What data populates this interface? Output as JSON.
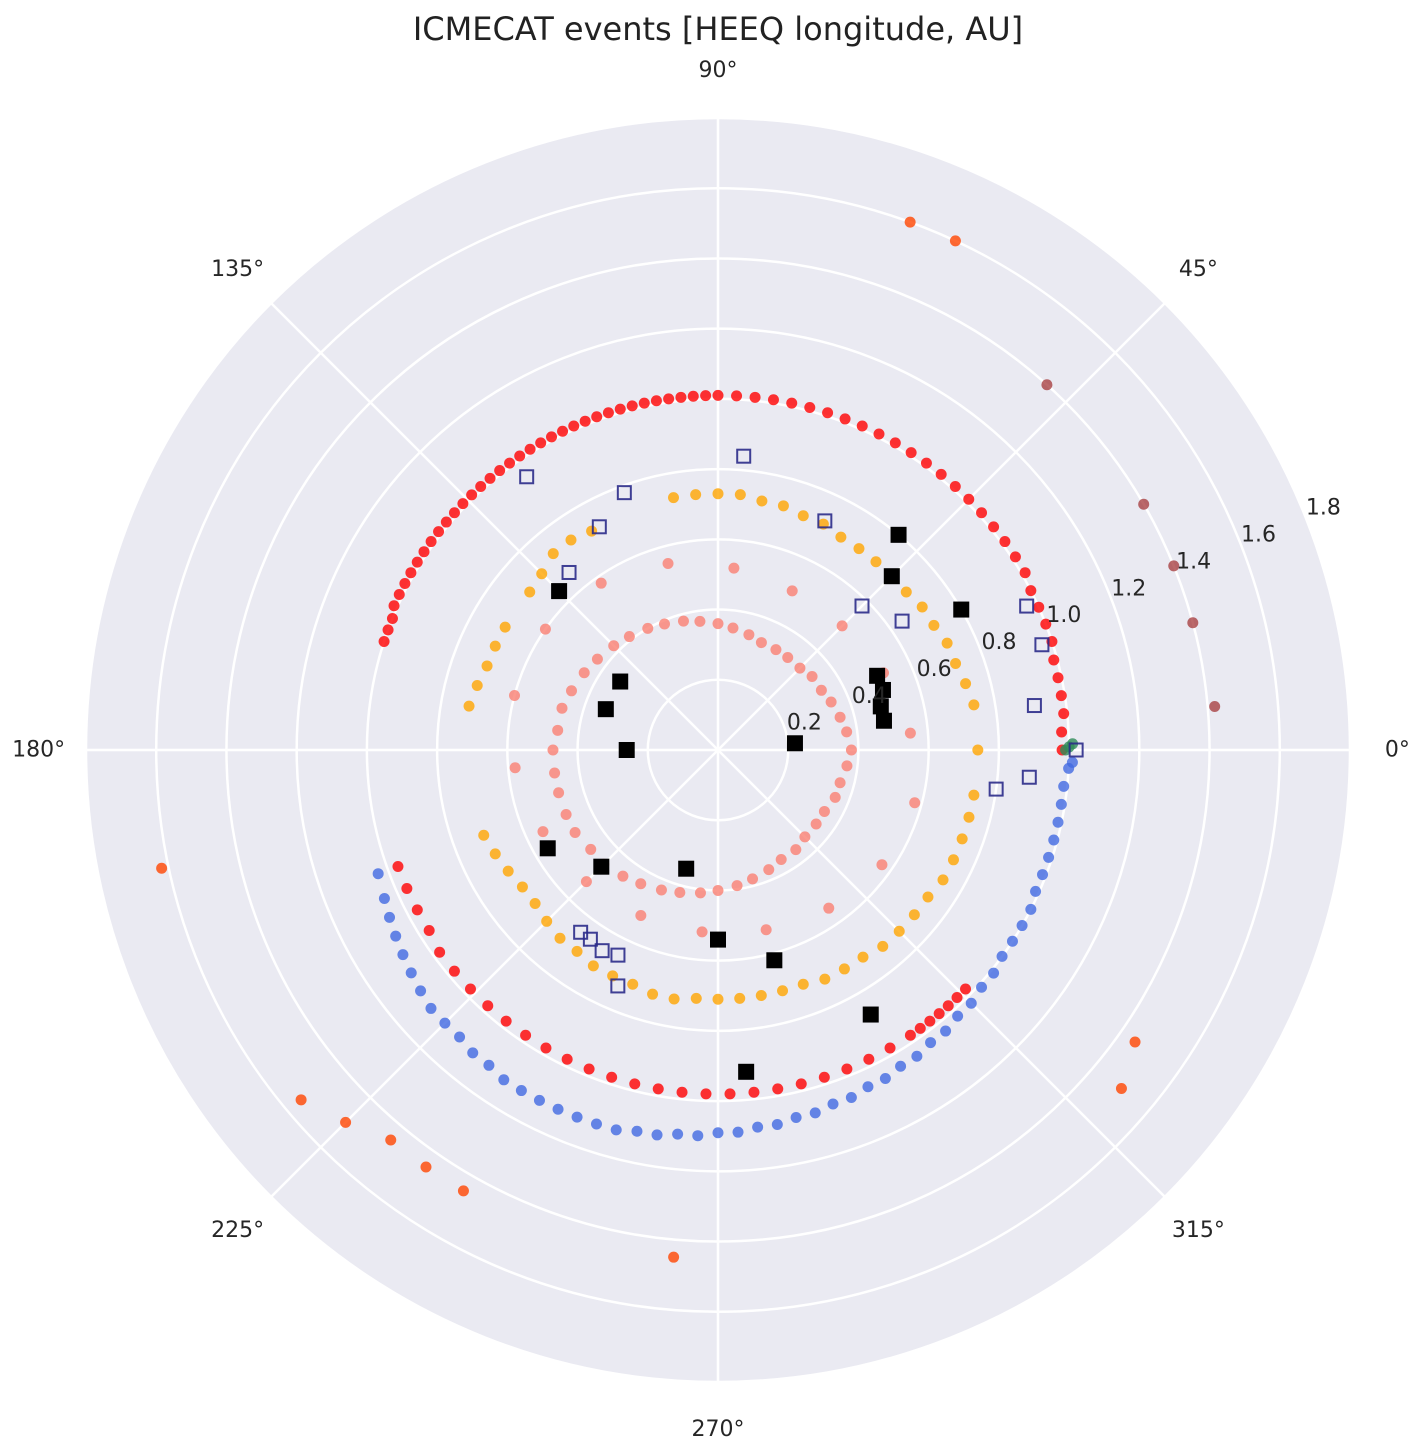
{
  "chart_data": {
    "type": "scatter",
    "projection": "polar",
    "title": "ICMECAT events [HEEQ longitude, AU]",
    "theta_unit": "degrees",
    "r_unit": "AU",
    "rlim": [
      0,
      1.8
    ],
    "grid": true,
    "angle_ticks": [
      {
        "deg": 0,
        "label": "0°"
      },
      {
        "deg": 45,
        "label": "45°"
      },
      {
        "deg": 90,
        "label": "90°"
      },
      {
        "deg": 135,
        "label": "135°"
      },
      {
        "deg": 180,
        "label": "180°"
      },
      {
        "deg": 225,
        "label": "225°"
      },
      {
        "deg": 270,
        "label": "270°"
      },
      {
        "deg": 315,
        "label": "315°"
      }
    ],
    "radial_ticks": [
      {
        "r": 0.2,
        "label": "0.2"
      },
      {
        "r": 0.4,
        "label": "0.4"
      },
      {
        "r": 0.6,
        "label": "0.6"
      },
      {
        "r": 0.8,
        "label": "0.8"
      },
      {
        "r": 1.0,
        "label": "1.0"
      },
      {
        "r": 1.2,
        "label": "1.2"
      },
      {
        "r": 1.4,
        "label": "1.4"
      },
      {
        "r": 1.6,
        "label": "1.6"
      },
      {
        "r": 1.8,
        "label": "1.8"
      }
    ],
    "series": [
      {
        "marker": "circle",
        "color": "#ff0000",
        "alpha": 0.8,
        "theta": [
          0,
          3,
          6,
          9,
          12,
          15,
          18,
          21,
          24,
          27,
          30,
          33,
          36,
          39,
          42,
          45,
          48,
          51,
          54,
          57,
          60,
          63,
          66,
          69,
          72,
          75,
          78,
          81,
          84,
          87,
          90,
          92,
          94,
          96,
          98,
          100,
          102,
          104,
          106,
          108,
          110,
          112,
          114,
          116,
          118,
          120,
          122,
          124,
          126,
          128,
          130,
          132,
          134,
          136,
          138,
          140,
          142,
          144,
          146,
          148,
          150,
          152,
          154,
          156,
          158,
          160,
          162,
          200,
          204,
          208,
          212,
          216,
          220,
          224,
          228,
          232,
          236,
          240,
          244,
          248,
          252,
          256,
          260,
          264,
          268,
          272,
          276,
          280,
          284,
          288,
          292,
          296,
          300,
          304,
          306,
          308,
          310,
          312,
          314,
          316
        ],
        "r": [
          0.98,
          0.98,
          0.99,
          0.99,
          0.99,
          0.99,
          1.0,
          1.0,
          1.0,
          1.0,
          1.01,
          1.01,
          1.01,
          1.01,
          1.01,
          1.01,
          1.01,
          1.01,
          1.01,
          1.01,
          1.01,
          1.01,
          1.01,
          1.01,
          1.01,
          1.01,
          1.01,
          1.01,
          1.01,
          1.01,
          1.01,
          1.01,
          1.01,
          1.01,
          1.01,
          1.01,
          1.01,
          1.01,
          1.01,
          1.01,
          1.01,
          1.01,
          1.01,
          1.01,
          1.01,
          1.01,
          1.01,
          1.01,
          1.01,
          1.01,
          1.01,
          1.01,
          1.01,
          1.01,
          1.01,
          1.01,
          1.01,
          1.01,
          1.01,
          1.01,
          1.01,
          1.01,
          1.01,
          1.01,
          1.0,
          1.0,
          1.0,
          0.97,
          0.97,
          0.97,
          0.97,
          0.98,
          0.98,
          0.98,
          0.98,
          0.98,
          0.98,
          0.98,
          0.98,
          0.98,
          0.98,
          0.98,
          0.98,
          0.98,
          0.98,
          0.98,
          0.98,
          0.98,
          0.98,
          0.98,
          0.98,
          0.98,
          0.98,
          0.98,
          0.98,
          0.98,
          0.98,
          0.98,
          0.98,
          0.98
        ]
      },
      {
        "marker": "circle",
        "color": "#4169e1",
        "alpha": 0.8,
        "theta": [
          200,
          204,
          207,
          210,
          213,
          216,
          219,
          222,
          225,
          228,
          231,
          234,
          237,
          240,
          243,
          246,
          249,
          252,
          255,
          258,
          261,
          264,
          267,
          270,
          273,
          276,
          279,
          282,
          285,
          288,
          291,
          294,
          297,
          300,
          303,
          306,
          309,
          312,
          315,
          318,
          321,
          324,
          327,
          330,
          333,
          336,
          339,
          342,
          345,
          348,
          351,
          354,
          357,
          358
        ],
        "r": [
          1.03,
          1.04,
          1.05,
          1.06,
          1.07,
          1.08,
          1.09,
          1.1,
          1.1,
          1.1,
          1.11,
          1.11,
          1.12,
          1.12,
          1.12,
          1.12,
          1.12,
          1.12,
          1.12,
          1.11,
          1.11,
          1.1,
          1.1,
          1.09,
          1.09,
          1.08,
          1.08,
          1.07,
          1.07,
          1.06,
          1.06,
          1.05,
          1.05,
          1.04,
          1.04,
          1.03,
          1.03,
          1.02,
          1.02,
          1.01,
          1.01,
          1.0,
          1.0,
          1.0,
          1.0,
          0.99,
          0.99,
          0.99,
          0.99,
          0.99,
          0.99,
          0.99,
          1.0,
          1.01
        ]
      },
      {
        "marker": "circle",
        "color": "#ffa500",
        "alpha": 0.8,
        "theta": [
          0,
          10,
          15,
          20,
          25,
          30,
          35,
          40,
          45,
          50,
          55,
          60,
          65,
          70,
          75,
          80,
          85,
          90,
          95,
          100,
          120,
          125,
          130,
          135,
          140,
          150,
          155,
          160,
          165,
          170,
          200,
          205,
          210,
          215,
          220,
          225,
          230,
          235,
          240,
          245,
          250,
          255,
          260,
          265,
          270,
          275,
          280,
          285,
          290,
          295,
          300,
          305,
          310,
          315,
          320,
          325,
          330,
          335,
          340,
          345,
          350
        ],
        "r": [
          0.74,
          0.74,
          0.73,
          0.72,
          0.72,
          0.71,
          0.71,
          0.7,
          0.7,
          0.7,
          0.7,
          0.7,
          0.71,
          0.71,
          0.72,
          0.72,
          0.73,
          0.73,
          0.73,
          0.73,
          0.72,
          0.73,
          0.73,
          0.71,
          0.7,
          0.7,
          0.7,
          0.7,
          0.71,
          0.72,
          0.71,
          0.7,
          0.69,
          0.68,
          0.68,
          0.69,
          0.7,
          0.7,
          0.71,
          0.71,
          0.71,
          0.72,
          0.72,
          0.71,
          0.71,
          0.71,
          0.71,
          0.71,
          0.71,
          0.72,
          0.72,
          0.72,
          0.73,
          0.73,
          0.73,
          0.73,
          0.74,
          0.74,
          0.74,
          0.74,
          0.74
        ]
      },
      {
        "marker": "circle",
        "color": "#fa8072",
        "alpha": 0.8,
        "theta": [
          0,
          8,
          15,
          23,
          30,
          38,
          45,
          53,
          60,
          68,
          75,
          83,
          90,
          98,
          105,
          113,
          120,
          128,
          135,
          143,
          150,
          158,
          165,
          173,
          180,
          188,
          195,
          203,
          210,
          218,
          225,
          233,
          240,
          248,
          255,
          263,
          270,
          278,
          285,
          293,
          300,
          308,
          315,
          323,
          330,
          338,
          345,
          353,
          5,
          25,
          45,
          65,
          85,
          105,
          125,
          145,
          165,
          185,
          205,
          225,
          245,
          265,
          285,
          305,
          325,
          345
        ],
        "r": [
          0.38,
          0.37,
          0.36,
          0.35,
          0.34,
          0.34,
          0.33,
          0.33,
          0.33,
          0.33,
          0.34,
          0.35,
          0.36,
          0.37,
          0.38,
          0.39,
          0.4,
          0.41,
          0.42,
          0.43,
          0.44,
          0.45,
          0.46,
          0.46,
          0.47,
          0.47,
          0.47,
          0.47,
          0.47,
          0.46,
          0.46,
          0.45,
          0.44,
          0.43,
          0.42,
          0.41,
          0.4,
          0.39,
          0.38,
          0.37,
          0.36,
          0.36,
          0.35,
          0.35,
          0.35,
          0.36,
          0.36,
          0.37,
          0.55,
          0.52,
          0.5,
          0.5,
          0.52,
          0.55,
          0.58,
          0.6,
          0.6,
          0.58,
          0.55,
          0.53,
          0.52,
          0.52,
          0.53,
          0.55,
          0.57,
          0.58
        ]
      },
      {
        "marker": "circle",
        "color": "#9e2a2b",
        "alpha": 0.7,
        "theta": [
          5,
          15,
          22,
          30,
          48
        ],
        "r": [
          1.42,
          1.4,
          1.4,
          1.4,
          1.4
        ]
      },
      {
        "marker": "circle",
        "color": "#ff4500",
        "alpha": 0.8,
        "theta": [
          65,
          70,
          192,
          220,
          225,
          230,
          235,
          240,
          265,
          320,
          325
        ],
        "r": [
          1.6,
          1.6,
          1.62,
          1.55,
          1.5,
          1.45,
          1.45,
          1.45,
          1.45,
          1.5,
          1.45
        ]
      },
      {
        "marker": "circle",
        "color": "#2e8b57",
        "alpha": 0.8,
        "theta": [
          0,
          0.5,
          1
        ],
        "r": [
          0.99,
          1.0,
          1.01
        ]
      },
      {
        "marker": "square",
        "color": "#000000",
        "alpha": 1,
        "theta": [
          5,
          10,
          15,
          20,
          25,
          30,
          45,
          50,
          135,
          145,
          160,
          180,
          210,
          225,
          255,
          270,
          275,
          285,
          300
        ],
        "r": [
          0.22,
          0.48,
          0.48,
          0.5,
          0.5,
          0.8,
          0.7,
          0.8,
          0.64,
          0.34,
          0.34,
          0.26,
          0.56,
          0.47,
          0.35,
          0.54,
          0.92,
          0.62,
          0.87
        ]
      },
      {
        "marker": "square-open",
        "color": "#2b2b8a",
        "alpha": 0.9,
        "theta": [
          0,
          8,
          18,
          25,
          35,
          45,
          65,
          85,
          110,
          118,
          125,
          130,
          355,
          233,
          236,
          240,
          244,
          247,
          352
        ],
        "r": [
          1.02,
          0.91,
          0.97,
          0.97,
          0.64,
          0.58,
          0.72,
          0.84,
          0.78,
          0.72,
          0.95,
          0.66,
          0.89,
          0.65,
          0.65,
          0.66,
          0.65,
          0.73,
          0.8
        ]
      }
    ]
  }
}
